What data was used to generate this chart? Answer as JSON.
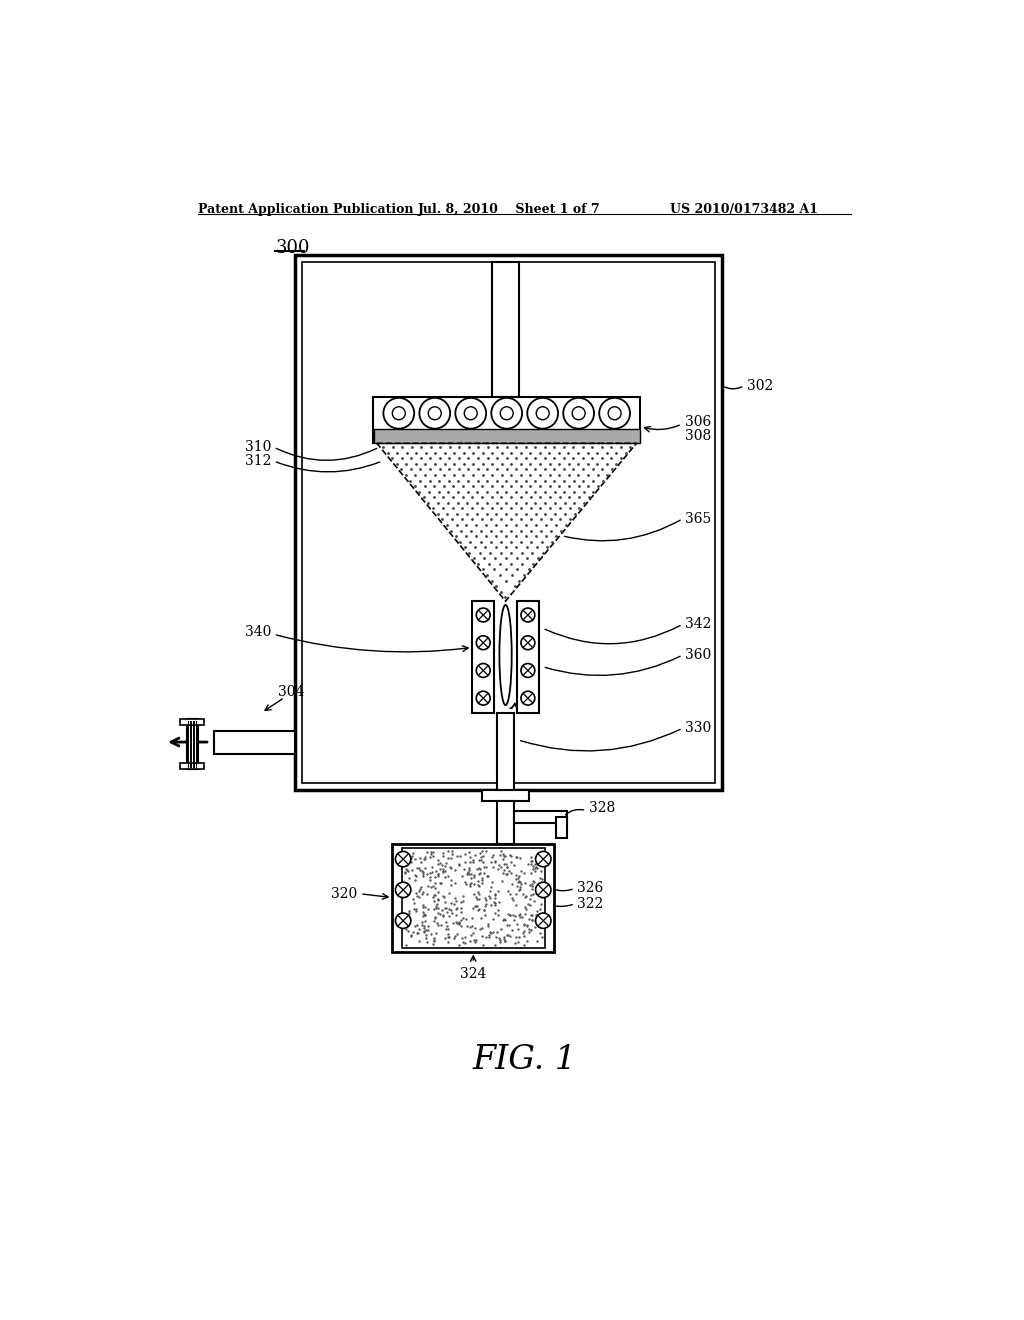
{
  "bg_color": "#ffffff",
  "line_color": "#000000",
  "header_left": "Patent Application Publication",
  "header_mid": "Jul. 8, 2010    Sheet 1 of 7",
  "header_right": "US 2010/0173482 A1",
  "fig_label": "FIG. 1",
  "ref_300": "300",
  "ref_302": "302",
  "ref_304": "304",
  "ref_306": "306",
  "ref_308": "308",
  "ref_310": "310",
  "ref_312": "312",
  "ref_320": "320",
  "ref_322": "322",
  "ref_324": "324",
  "ref_326": "326",
  "ref_328": "328",
  "ref_330": "330",
  "ref_340": "340",
  "ref_342": "342",
  "ref_360": "360",
  "ref_365": "365"
}
